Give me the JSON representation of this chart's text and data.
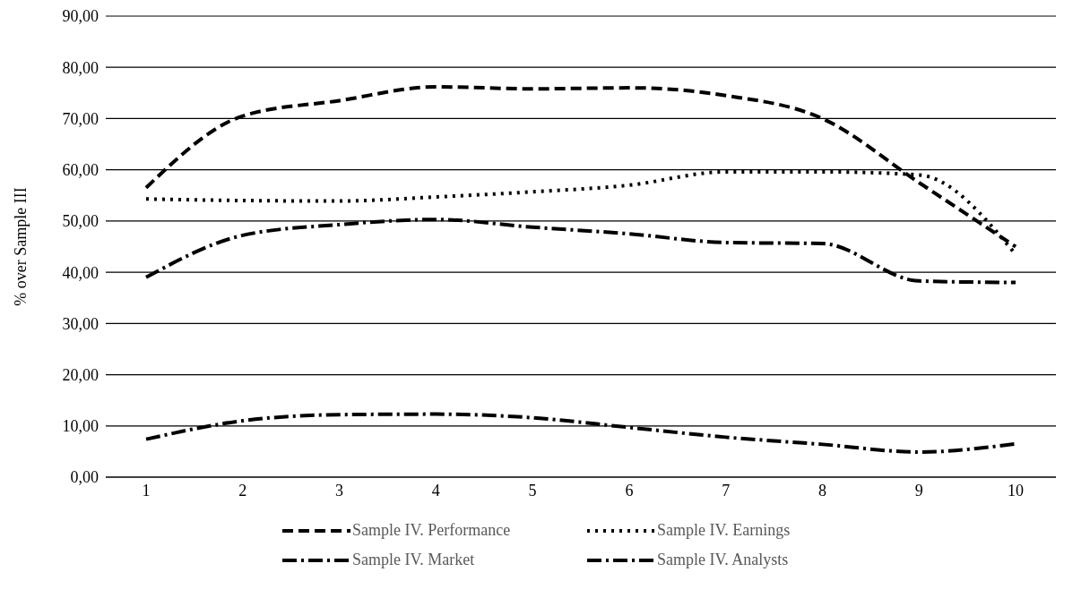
{
  "chart_data": {
    "type": "line",
    "ylabel": "% over Sample III",
    "categories": [
      "1",
      "2",
      "3",
      "4",
      "5",
      "6",
      "7",
      "8",
      "9",
      "10"
    ],
    "series": [
      {
        "name": "Sample IV. Performance",
        "color": "#000000",
        "line_style": "dashed",
        "values": [
          56.5,
          70.5,
          73.5,
          76.2,
          75.8,
          76.0,
          74.5,
          70.0,
          57.5,
          45.0
        ]
      },
      {
        "name": "Sample IV. Earnings",
        "color": "#000000",
        "line_style": "dotted",
        "values": [
          54.3,
          54.0,
          53.9,
          54.7,
          55.7,
          57.0,
          59.6,
          59.6,
          59.0,
          43.5
        ]
      },
      {
        "name": "Sample IV. Market",
        "color": "#000000",
        "line_style": "dashed",
        "values": [
          39.0,
          47.2,
          49.3,
          50.3,
          48.8,
          47.5,
          45.8,
          45.6,
          38.3,
          38.0
        ]
      },
      {
        "name": "Sample IV. Analysts",
        "color": "#000000",
        "line_style": "dashed",
        "values": [
          7.4,
          11.0,
          12.2,
          12.3,
          11.6,
          9.7,
          7.8,
          6.4,
          4.9,
          6.5
        ]
      }
    ],
    "ylim": [
      0,
      90
    ],
    "yticks": [
      {
        "value": 0,
        "label": "0,00"
      },
      {
        "value": 10,
        "label": "10,00"
      },
      {
        "value": 20,
        "label": "20,00"
      },
      {
        "value": 30,
        "label": "30,00"
      },
      {
        "value": 40,
        "label": "40,00"
      },
      {
        "value": 50,
        "label": "50,00"
      },
      {
        "value": 60,
        "label": "60,00"
      },
      {
        "value": 70,
        "label": "70,00"
      },
      {
        "value": 80,
        "label": "80,00"
      },
      {
        "value": 90,
        "label": "90,00"
      }
    ],
    "grid": "y",
    "legend": "bottom",
    "marker": "none"
  }
}
